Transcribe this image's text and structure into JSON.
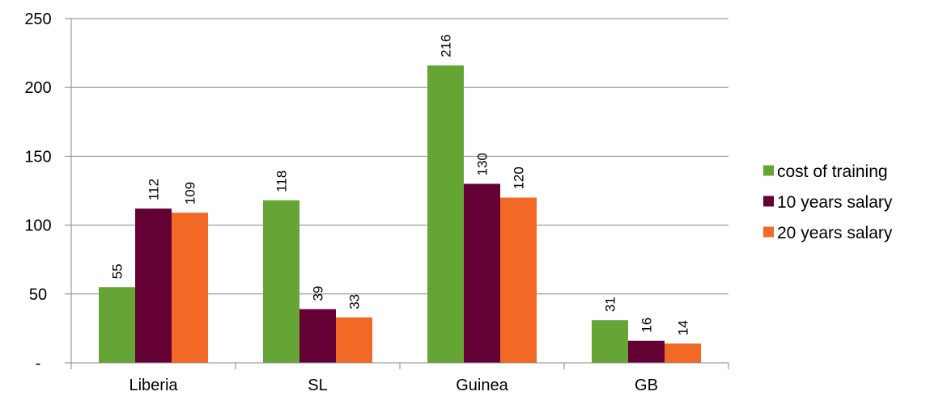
{
  "chart_data": {
    "type": "bar",
    "categories": [
      "Liberia",
      "SL",
      "Guinea",
      "GB"
    ],
    "series": [
      {
        "name": "cost of training",
        "values": [
          55,
          118,
          216,
          31
        ],
        "color": "#65A535"
      },
      {
        "name": "10 years salary",
        "values": [
          112,
          39,
          130,
          16
        ],
        "color": "#650035"
      },
      {
        "name": "20 years salary",
        "values": [
          109,
          33,
          120,
          14
        ],
        "color": "#F26825"
      }
    ],
    "yticks": [
      {
        "value": 0,
        "label": "-"
      },
      {
        "value": 50,
        "label": "50"
      },
      {
        "value": 100,
        "label": "100"
      },
      {
        "value": 150,
        "label": "150"
      },
      {
        "value": 200,
        "label": "200"
      },
      {
        "value": 250,
        "label": "250"
      }
    ],
    "ylim": [
      0,
      250
    ],
    "grid": true,
    "legend_position": "right",
    "data_labels": true,
    "gridline_color": "#868686"
  }
}
